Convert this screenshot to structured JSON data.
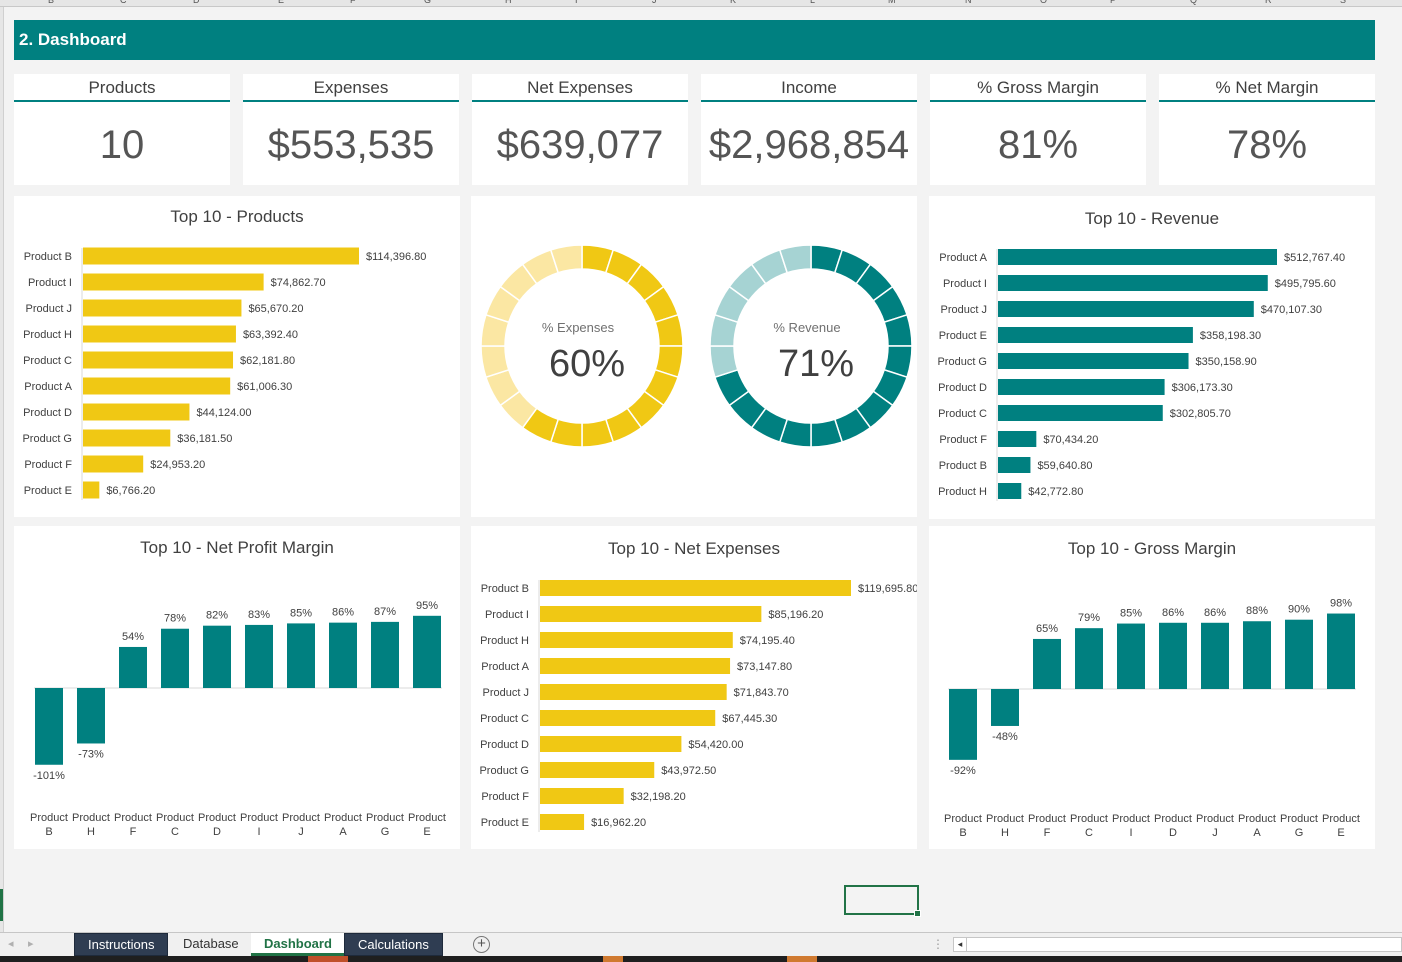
{
  "column_letters": [
    "B",
    "C",
    "D",
    "E",
    "F",
    "G",
    "H",
    "I",
    "J",
    "K",
    "L",
    "M",
    "N",
    "O",
    "P",
    "Q",
    "R",
    "S",
    "T",
    "U",
    "V",
    "W",
    "X",
    "Y"
  ],
  "banner": {
    "title": "2. Dashboard",
    "color": "#008080"
  },
  "kpis": [
    {
      "title": "Products",
      "value": "10"
    },
    {
      "title": "Expenses",
      "value": "$553,535"
    },
    {
      "title": "Net Expenses",
      "value": "$639,077"
    },
    {
      "title": "Income",
      "value": "$2,968,854"
    },
    {
      "title": "% Gross Margin",
      "value": "81%"
    },
    {
      "title": "% Net Margin",
      "value": "78%"
    }
  ],
  "colors": {
    "teal": "#008080",
    "teal_light": "#a6d3d3",
    "yellow": "#f0c814",
    "yellow_light": "#fbe7a3"
  },
  "chart_data": [
    {
      "id": "top10-products",
      "type": "bar",
      "orientation": "horizontal",
      "title": "Top 10 - Products",
      "color": "#f0c814",
      "categories": [
        "Product B",
        "Product I",
        "Product J",
        "Product H",
        "Product C",
        "Product A",
        "Product D",
        "Product G",
        "Product F",
        "Product E"
      ],
      "values": [
        114396.8,
        74862.7,
        65670.2,
        63392.4,
        62181.8,
        61006.3,
        44124.0,
        36181.5,
        24953.2,
        6766.2
      ],
      "labels": [
        "$114,396.80",
        "$74,862.70",
        "$65,670.20",
        "$63,392.40",
        "$62,181.80",
        "$61,006.30",
        "$44,124.00",
        "$36,181.50",
        "$24,953.20",
        "$6,766.20"
      ]
    },
    {
      "id": "pct-expenses",
      "type": "pie",
      "subtype": "donut",
      "label": "% Expenses",
      "display": "60%",
      "value": 0.6,
      "color": "#f0c814",
      "remainder_color": "#fbe7a3"
    },
    {
      "id": "pct-revenue",
      "type": "pie",
      "subtype": "donut",
      "label": "% Revenue",
      "display": "71%",
      "value": 0.71,
      "color": "#008080",
      "remainder_color": "#a6d3d3"
    },
    {
      "id": "top10-revenue",
      "type": "bar",
      "orientation": "horizontal",
      "title": "Top 10 - Revenue",
      "color": "#008080",
      "categories": [
        "Product A",
        "Product I",
        "Product J",
        "Product E",
        "Product G",
        "Product D",
        "Product C",
        "Product F",
        "Product B",
        "Product H"
      ],
      "values": [
        512767.4,
        495795.6,
        470107.3,
        358198.3,
        350158.9,
        306173.3,
        302805.7,
        70434.2,
        59640.8,
        42772.8
      ],
      "labels": [
        "$512,767.40",
        "$495,795.60",
        "$470,107.30",
        "$358,198.30",
        "$350,158.90",
        "$306,173.30",
        "$302,805.70",
        "$70,434.20",
        "$59,640.80",
        "$42,772.80"
      ]
    },
    {
      "id": "top10-net-profit-margin",
      "type": "bar",
      "orientation": "vertical",
      "title": "Top 10 - Net Profit Margin",
      "color": "#008080",
      "categories": [
        "Product B",
        "Product H",
        "Product F",
        "Product C",
        "Product D",
        "Product I",
        "Product J",
        "Product A",
        "Product G",
        "Product E"
      ],
      "values": [
        -101,
        -73,
        54,
        78,
        82,
        83,
        85,
        86,
        87,
        95
      ],
      "labels": [
        "-101%",
        "-73%",
        "54%",
        "78%",
        "82%",
        "83%",
        "85%",
        "86%",
        "87%",
        "95%"
      ]
    },
    {
      "id": "top10-net-expenses",
      "type": "bar",
      "orientation": "horizontal",
      "title": "Top 10 - Net Expenses",
      "color": "#f0c814",
      "categories": [
        "Product B",
        "Product I",
        "Product H",
        "Product A",
        "Product J",
        "Product C",
        "Product D",
        "Product G",
        "Product F",
        "Product E"
      ],
      "values": [
        119695.8,
        85196.2,
        74195.4,
        73147.8,
        71843.7,
        67445.3,
        54420.0,
        43972.5,
        32198.2,
        16962.2
      ],
      "labels": [
        "$119,695.80",
        "$85,196.20",
        "$74,195.40",
        "$73,147.80",
        "$71,843.70",
        "$67,445.30",
        "$54,420.00",
        "$43,972.50",
        "$32,198.20",
        "$16,962.20"
      ]
    },
    {
      "id": "top10-gross-margin",
      "type": "bar",
      "orientation": "vertical",
      "title": "Top 10 - Gross Margin",
      "color": "#008080",
      "categories": [
        "Product B",
        "Product H",
        "Product F",
        "Product C",
        "Product I",
        "Product D",
        "Product J",
        "Product A",
        "Product G",
        "Product E"
      ],
      "values": [
        -92,
        -48,
        65,
        79,
        85,
        86,
        86,
        88,
        90,
        98
      ],
      "labels": [
        "-92%",
        "-48%",
        "65%",
        "79%",
        "85%",
        "86%",
        "86%",
        "88%",
        "90%",
        "98%"
      ]
    }
  ],
  "tabs": [
    {
      "label": "Instructions",
      "style": "dark"
    },
    {
      "label": "Database",
      "style": "plain"
    },
    {
      "label": "Dashboard",
      "style": "active"
    },
    {
      "label": "Calculations",
      "style": "dark"
    }
  ],
  "tab_nav": {
    "prev_icon": "◂",
    "next_icon": "▸",
    "add_icon": "+",
    "split_icon": "⋮",
    "scroll_left_icon": "◂"
  }
}
